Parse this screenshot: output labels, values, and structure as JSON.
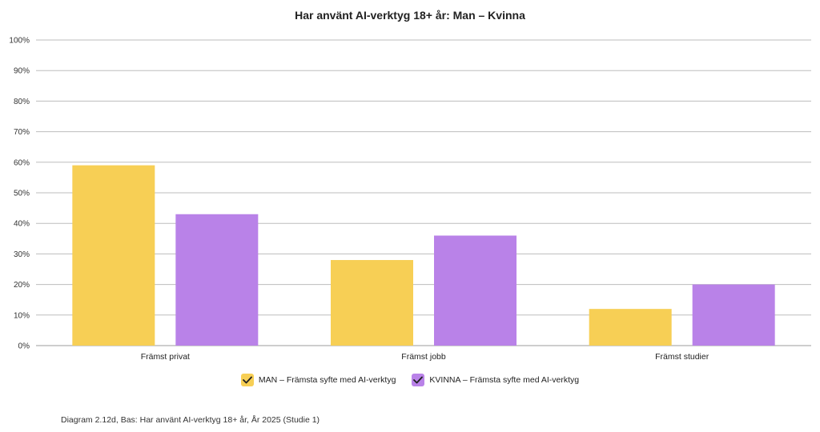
{
  "chart_data": {
    "type": "bar",
    "title": "Har använt AI-verktyg 18+ år: Man – Kvinna",
    "categories": [
      "Främst privat",
      "Främst jobb",
      "Främst studier"
    ],
    "series": [
      {
        "name": "MAN – Främsta syfte med AI-verktyg",
        "values": [
          59,
          28,
          12
        ],
        "color": "#f7cf55"
      },
      {
        "name": "KVINNA – Främsta syfte med AI-verktyg",
        "values": [
          43,
          36,
          20
        ],
        "color": "#b982e8"
      }
    ],
    "ylim": [
      0,
      100
    ],
    "yticks": [
      "0%",
      "10%",
      "20%",
      "30%",
      "40%",
      "50%",
      "60%",
      "70%",
      "80%",
      "90%",
      "100%"
    ],
    "grid": true,
    "legend_position": "bottom"
  },
  "caption": "Diagram 2.12d, Bas: Har använt AI-verktyg 18+ år, År 2025 (Studie 1)",
  "colors": {
    "grid": "#bdbdbd",
    "axis": "#9e9e9e",
    "check": "#222222"
  },
  "legend_icon": "checkmark-icon"
}
